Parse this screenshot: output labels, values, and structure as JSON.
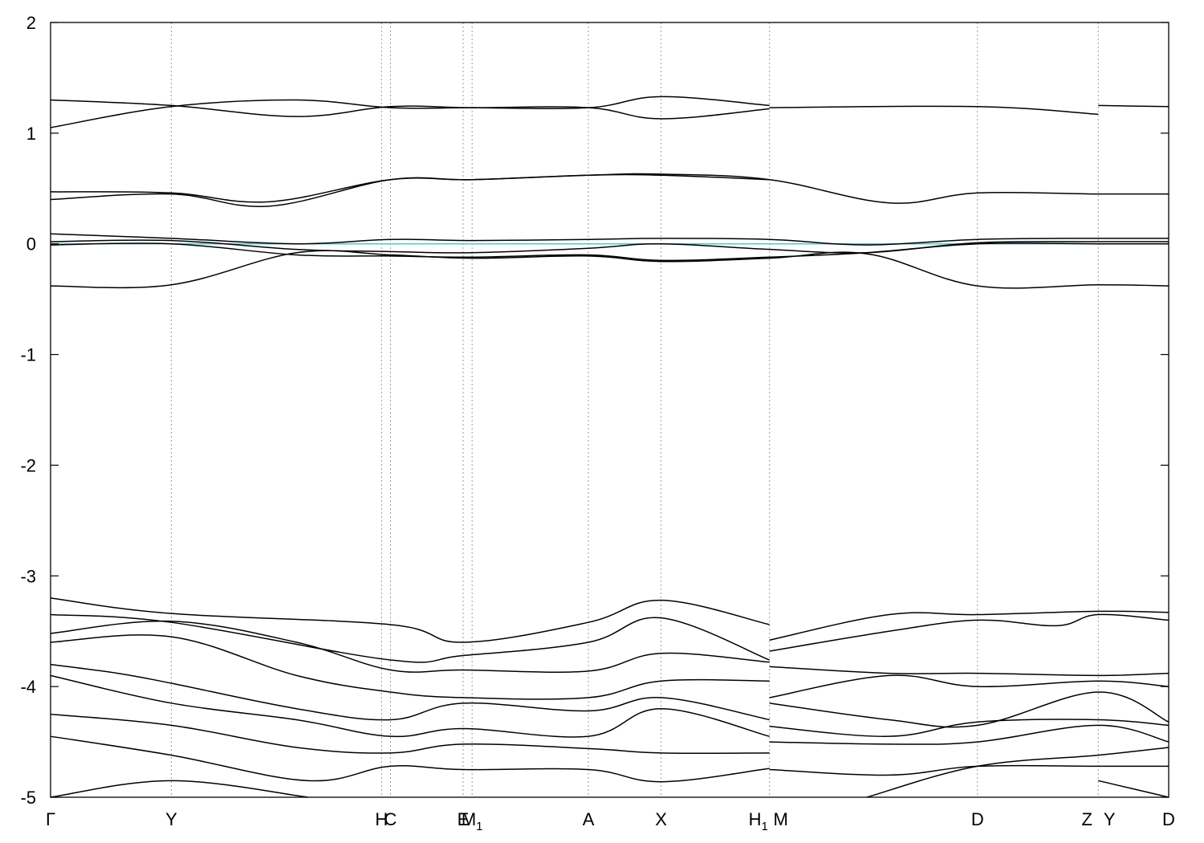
{
  "chart_data": {
    "type": "line",
    "title": "",
    "xlabel": "",
    "ylabel": "",
    "ylim": [
      -5,
      2
    ],
    "xlim": [
      0,
      10
    ],
    "grid": "vertical dashed lines at k-points",
    "legend": "none",
    "yticks": [
      "2",
      "1",
      "0",
      "-1",
      "-2",
      "-3",
      "-4",
      "-5"
    ],
    "ytick_values": [
      2,
      1,
      0,
      -1,
      -2,
      -3,
      -4,
      -5
    ],
    "kpoints": [
      {
        "name": "Γ",
        "sub": "",
        "x": 0.0
      },
      {
        "name": "Y",
        "sub": "",
        "x": 1.08
      },
      {
        "name": "H",
        "sub": "",
        "x": 2.96
      },
      {
        "name": "C",
        "sub": "",
        "x": 3.04
      },
      {
        "name": "E",
        "sub": "",
        "x": 3.69
      },
      {
        "name": "M",
        "sub": "1",
        "x": 3.77
      },
      {
        "name": "A",
        "sub": "",
        "x": 4.81
      },
      {
        "name": "X",
        "sub": "",
        "x": 5.46
      },
      {
        "name": "H",
        "sub": "1",
        "x": 6.43
      },
      {
        "name": "M",
        "sub": "",
        "x": 6.43
      },
      {
        "name": "D",
        "sub": "",
        "x": 8.29
      },
      {
        "name": "Z",
        "sub": "",
        "x": 9.37
      },
      {
        "name": "Y",
        "sub": "",
        "x": 9.37
      },
      {
        "name": "D",
        "sub": "",
        "x": 10.0
      }
    ],
    "fermi_level": 0,
    "colors": {
      "bands": "#000000",
      "fermi": "#5fc4cf",
      "grid": "#9a9a9a"
    },
    "series": [
      {
        "x": [
          0,
          1.08,
          2.2,
          3.04,
          3.77,
          4.81,
          5.46,
          6.43
        ],
        "values": [
          1.3,
          1.25,
          1.15,
          1.24,
          1.23,
          1.23,
          1.33,
          1.25
        ]
      },
      {
        "x": [
          0,
          1.08,
          2.2,
          3.04,
          3.77,
          4.81,
          5.46,
          6.43
        ],
        "values": [
          1.05,
          1.24,
          1.3,
          1.23,
          1.23,
          1.23,
          1.13,
          1.22
        ]
      },
      {
        "x": [
          6.43,
          8.29,
          9.37
        ],
        "values": [
          1.23,
          1.24,
          1.17
        ]
      },
      {
        "x": [
          9.37,
          10.0
        ],
        "values": [
          1.25,
          1.24
        ]
      },
      {
        "x": [
          0,
          1.08,
          1.95,
          3.04,
          3.77,
          4.81,
          5.46,
          6.43,
          7.5,
          8.29,
          9.37,
          10.0
        ],
        "values": [
          0.47,
          0.46,
          0.38,
          0.58,
          0.58,
          0.62,
          0.63,
          0.58,
          0.37,
          0.46,
          0.45,
          0.45
        ]
      },
      {
        "x": [
          0,
          1.08,
          1.95,
          3.04,
          3.77,
          4.81,
          5.46,
          6.43
        ],
        "values": [
          0.4,
          0.45,
          0.34,
          0.58,
          0.58,
          0.62,
          0.62,
          0.58
        ]
      },
      {
        "x": [
          0,
          1.08,
          2.2,
          3.04,
          3.77,
          4.81,
          5.46,
          6.43,
          7.3,
          8.29,
          9.37,
          10.0
        ],
        "values": [
          0.09,
          0.05,
          0.0,
          0.04,
          0.03,
          0.04,
          0.05,
          0.04,
          -0.01,
          0.04,
          0.05,
          0.05
        ]
      },
      {
        "x": [
          0,
          1.08,
          2.2,
          3.04,
          3.77,
          4.81,
          5.46,
          6.43,
          7.3,
          8.29,
          9.37,
          10.0
        ],
        "values": [
          0.02,
          0.03,
          -0.05,
          -0.07,
          -0.08,
          -0.04,
          0.0,
          -0.05,
          -0.08,
          0.01,
          0.02,
          0.02
        ]
      },
      {
        "x": [
          0,
          1.08,
          2.2,
          3.04,
          3.77,
          4.81,
          5.46,
          6.43,
          7.3,
          8.29,
          9.37,
          10.0
        ],
        "values": [
          -0.01,
          0.0,
          -0.1,
          -0.11,
          -0.12,
          -0.1,
          -0.15,
          -0.12,
          -0.08,
          0.0,
          0.0,
          0.0
        ]
      },
      {
        "x": [
          0,
          1.08,
          2.2,
          3.04,
          3.77,
          4.81,
          5.46,
          6.43,
          7.3,
          8.29,
          9.37,
          10.0
        ],
        "values": [
          -0.38,
          -0.37,
          -0.08,
          -0.1,
          -0.13,
          -0.11,
          -0.16,
          -0.13,
          -0.09,
          -0.38,
          -0.37,
          -0.38
        ]
      },
      {
        "x": [
          0,
          1.08,
          3.04,
          3.69,
          4.81,
          5.46,
          6.43
        ],
        "values": [
          -3.2,
          -3.34,
          -3.44,
          -3.6,
          -3.42,
          -3.22,
          -3.44
        ]
      },
      {
        "x": [
          0,
          1.08,
          3.04,
          3.69,
          4.81,
          5.46,
          6.43
        ],
        "values": [
          -3.35,
          -3.42,
          -3.76,
          -3.72,
          -3.6,
          -3.38,
          -3.76
        ]
      },
      {
        "x": [
          0,
          1.08,
          2.2,
          3.04,
          3.69,
          4.81,
          5.46,
          6.43
        ],
        "values": [
          -3.52,
          -3.41,
          -3.6,
          -3.85,
          -3.85,
          -3.86,
          -3.7,
          -3.78
        ]
      },
      {
        "x": [
          0,
          1.08,
          2.2,
          3.04,
          3.69,
          4.81,
          5.46,
          6.43
        ],
        "values": [
          -3.6,
          -3.55,
          -3.9,
          -4.05,
          -4.1,
          -4.1,
          -3.95,
          -3.95
        ]
      },
      {
        "x": [
          0,
          0.6,
          1.08,
          2.2,
          3.04,
          3.69,
          4.81,
          5.46,
          6.43
        ],
        "values": [
          -3.8,
          -3.88,
          -3.97,
          -4.2,
          -4.3,
          -4.15,
          -4.22,
          -4.1,
          -4.3
        ]
      },
      {
        "x": [
          0,
          1.08,
          2.2,
          3.04,
          3.69,
          4.81,
          5.46,
          6.43
        ],
        "values": [
          -3.9,
          -4.15,
          -4.3,
          -4.45,
          -4.38,
          -4.45,
          -4.2,
          -4.45
        ]
      },
      {
        "x": [
          0,
          1.08,
          2.2,
          3.04,
          3.69,
          4.81,
          5.46,
          6.43
        ],
        "values": [
          -4.25,
          -4.35,
          -4.55,
          -4.6,
          -4.52,
          -4.56,
          -4.6,
          -4.6
        ]
      },
      {
        "x": [
          0,
          1.08,
          2.3,
          3.04,
          3.69,
          4.81,
          5.46,
          6.43
        ],
        "values": [
          -4.45,
          -4.62,
          -4.85,
          -4.72,
          -4.75,
          -4.75,
          -4.86,
          -4.74
        ]
      },
      {
        "x": [
          0,
          1.08,
          2.3
        ],
        "values": [
          -5.0,
          -4.85,
          -5.0
        ]
      },
      {
        "x": [
          6.43,
          7.5,
          8.29,
          9.37,
          10.0
        ],
        "values": [
          -3.58,
          -3.35,
          -3.35,
          -3.32,
          -3.33
        ]
      },
      {
        "x": [
          6.43,
          7.5,
          8.29,
          9.0,
          9.37,
          10.0
        ],
        "values": [
          -3.68,
          -3.5,
          -3.4,
          -3.45,
          -3.35,
          -3.4
        ]
      },
      {
        "x": [
          6.43,
          7.5,
          8.29,
          9.37,
          10.0
        ],
        "values": [
          -3.82,
          -3.88,
          -3.88,
          -3.9,
          -3.88
        ]
      },
      {
        "x": [
          6.43,
          7.5,
          8.29,
          9.37,
          10.0
        ],
        "values": [
          -4.1,
          -3.9,
          -4.0,
          -3.95,
          -4.0
        ]
      },
      {
        "x": [
          6.43,
          7.5,
          8.29,
          9.37,
          10.0
        ],
        "values": [
          -4.15,
          -4.3,
          -4.35,
          -4.05,
          -4.32
        ]
      },
      {
        "x": [
          6.43,
          7.5,
          8.29,
          9.37,
          10.0
        ],
        "values": [
          -4.36,
          -4.45,
          -4.32,
          -4.3,
          -4.35
        ]
      },
      {
        "x": [
          6.43,
          7.5,
          8.29,
          9.37,
          10.0
        ],
        "values": [
          -4.5,
          -4.52,
          -4.5,
          -4.35,
          -4.5
        ]
      },
      {
        "x": [
          6.43,
          7.5,
          8.29,
          9.37,
          10.0
        ],
        "values": [
          -4.75,
          -4.8,
          -4.72,
          -4.72,
          -4.72
        ]
      },
      {
        "x": [
          7.3,
          8.29,
          9.37,
          10.0
        ],
        "values": [
          -5.0,
          -4.72,
          -4.62,
          -4.55
        ]
      },
      {
        "x": [
          9.37,
          10.0
        ],
        "values": [
          -4.85,
          -5.0
        ]
      }
    ]
  }
}
